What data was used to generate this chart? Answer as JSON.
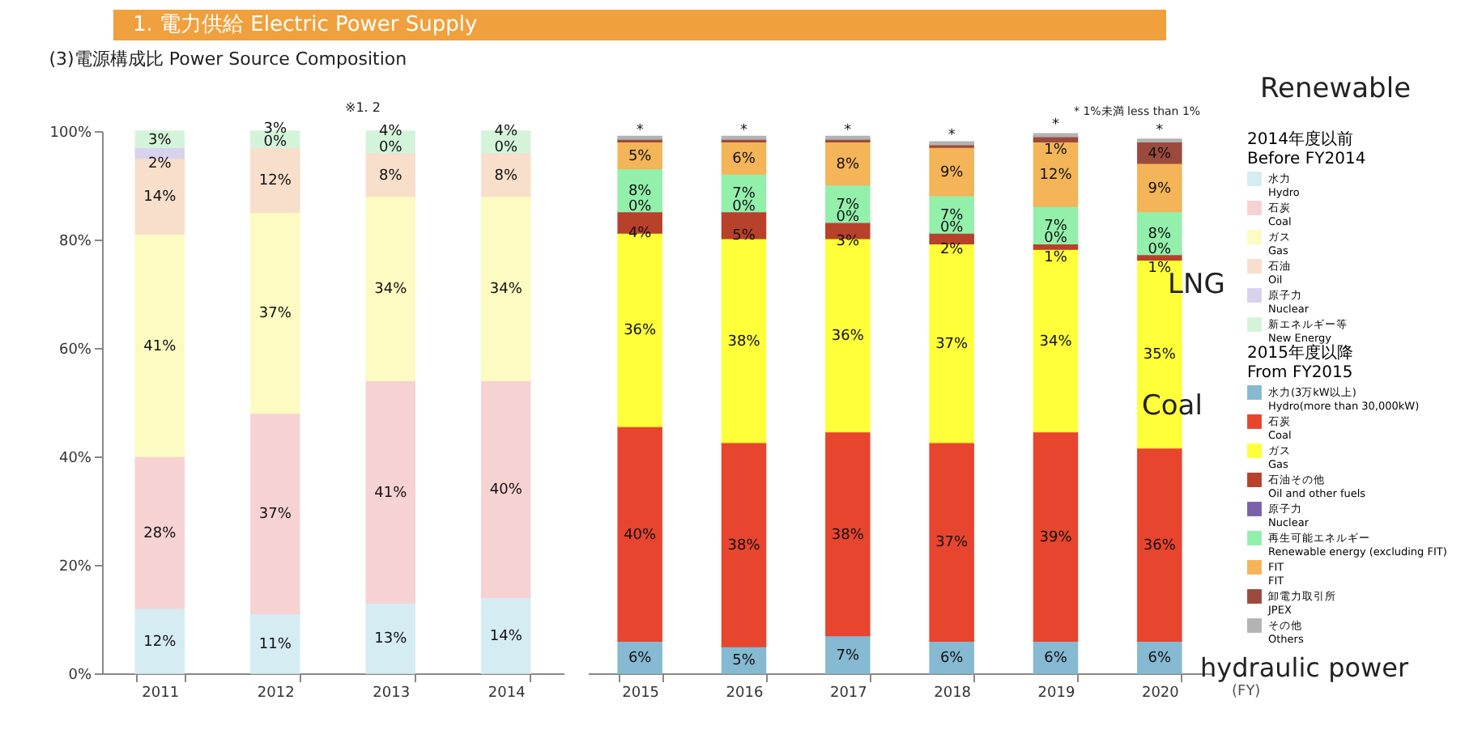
{
  "chart_data": [
    {
      "type": "bar",
      "title": "1. 電力供給  Electric Power Supply",
      "subtitle": "(3)電源構成比  Power Source Composition",
      "annotations": [
        "※1. 2"
      ],
      "stacked": true,
      "categories": [
        "2011",
        "2012",
        "2013",
        "2014"
      ],
      "ylim": [
        0,
        100
      ],
      "yticks": [
        {
          "value": 0,
          "label": "0%"
        },
        {
          "value": 20,
          "label": "20%"
        },
        {
          "value": 40,
          "label": "40%"
        },
        {
          "value": 60,
          "label": "60%"
        },
        {
          "value": 80,
          "label": "80%"
        },
        {
          "value": 100,
          "label": "100%"
        }
      ],
      "grid": false,
      "legend": "right",
      "legend_title": "2014年度以前 Before FY2014",
      "series": [
        {
          "name": "水力 Hydro",
          "color": "#d6ecf3",
          "values": [
            12,
            11,
            13,
            14
          ],
          "value_labels": [
            "12%",
            "11%",
            "13%",
            "14%"
          ]
        },
        {
          "name": "石炭 Coal",
          "color": "#f7d2d2",
          "values": [
            28,
            37,
            41,
            40
          ],
          "value_labels": [
            "28%",
            "37%",
            "41%",
            "40%"
          ]
        },
        {
          "name": "ガス Gas",
          "color": "#fbfbc2",
          "values": [
            41,
            37,
            34,
            34
          ],
          "value_labels": [
            "41%",
            "37%",
            "34%",
            "34%"
          ]
        },
        {
          "name": "石油 Oil",
          "color": "#f8dfcb",
          "values": [
            14,
            12,
            8,
            8
          ],
          "value_labels": [
            "14%",
            "12%",
            "8%",
            "8%"
          ]
        },
        {
          "name": "原子力 Nuclear",
          "color": "#d9d2ee",
          "values": [
            2,
            0,
            0,
            0
          ],
          "value_labels": [
            "2%",
            "0%",
            "0%",
            "0%"
          ]
        },
        {
          "name": "新エネルギー等 New Energy",
          "color": "#d4f4da",
          "values": [
            3,
            3,
            4,
            4
          ],
          "value_labels": [
            "3%",
            "3%",
            "4%",
            "4%"
          ]
        }
      ]
    },
    {
      "type": "bar",
      "xlabel": "(FY)",
      "annotations": [
        "* 1%未満 less than 1%",
        "Renewable",
        "LNG",
        "Coal",
        "hydraulic power"
      ],
      "stacked": true,
      "categories": [
        "2015",
        "2016",
        "2017",
        "2018",
        "2019",
        "2020"
      ],
      "ylim": [
        0,
        101
      ],
      "tick_labels": "x",
      "grid": false,
      "legend": "right",
      "legend_title": "2015年度以降 From FY2015",
      "series": [
        {
          "name": "水力(3万kW以上) Hydro(more than 30,000kW)",
          "color": "#86b9d2",
          "values": [
            6,
            5,
            7,
            6,
            6,
            6
          ],
          "value_labels": [
            "6%",
            "5%",
            "7%",
            "6%",
            "6%",
            "6%"
          ]
        },
        {
          "name": "石炭 Coal",
          "color": "#e8452f",
          "values": [
            40,
            38,
            38,
            37,
            39,
            36
          ],
          "value_labels": [
            "40%",
            "38%",
            "38%",
            "37%",
            "39%",
            "36%"
          ]
        },
        {
          "name": "ガス Gas",
          "color": "#ffff3a",
          "values": [
            36,
            38,
            36,
            37,
            34,
            35
          ],
          "value_labels": [
            "36%",
            "38%",
            "36%",
            "37%",
            "34%",
            "35%"
          ]
        },
        {
          "name": "石油その他 Oil and other fuels",
          "color": "#b8412b",
          "values": [
            4,
            5,
            3,
            2,
            1,
            1
          ],
          "value_labels": [
            "4%",
            "5%",
            "3%",
            "2%",
            "1%",
            "1%"
          ]
        },
        {
          "name": "原子力 Nuclear",
          "color": "#7a62a8",
          "values": [
            0,
            0,
            0,
            0,
            0,
            0
          ],
          "value_labels": [
            "0%",
            "0%",
            "0%",
            "0%",
            "0%",
            "0%"
          ]
        },
        {
          "name": "再生可能エネルギー Renewable energy (excluding FIT)",
          "color": "#93f0ab",
          "values": [
            8,
            7,
            7,
            7,
            7,
            8
          ],
          "value_labels": [
            "8%",
            "7%",
            "7%",
            "7%",
            "7%",
            "8%"
          ]
        },
        {
          "name": "FIT FIT",
          "color": "#f4b458",
          "values": [
            5,
            6,
            8,
            9,
            12,
            9
          ],
          "value_labels": [
            "5%",
            "6%",
            "8%",
            "9%",
            "12%",
            "9%"
          ]
        },
        {
          "name": "卸電力取引所 JPEX",
          "color": "#9b4b3d",
          "values": [
            0.5,
            0.5,
            0.5,
            0.5,
            1,
            4
          ],
          "value_labels": [
            "*",
            "*",
            "*",
            "*",
            "1%",
            "4%"
          ]
        },
        {
          "name": "その他 Others",
          "color": "#b3b3b3",
          "values": [
            0.5,
            0.5,
            0.5,
            0.5,
            0.5,
            0.5
          ],
          "value_labels": [
            null,
            null,
            null,
            null,
            "*",
            "*"
          ]
        }
      ]
    }
  ]
}
